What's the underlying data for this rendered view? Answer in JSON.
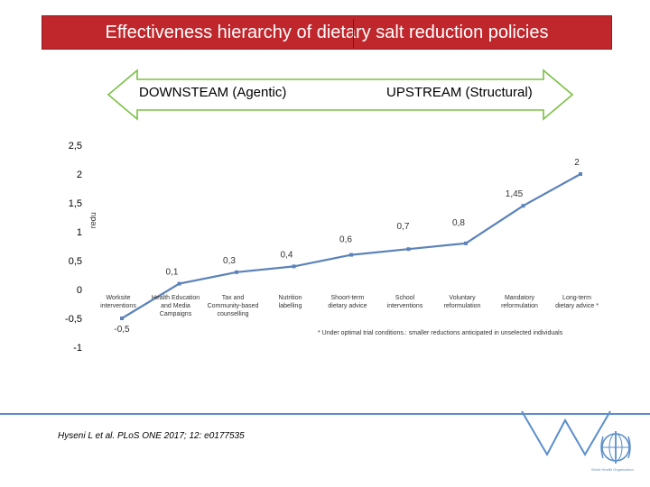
{
  "title": "Effectiveness hierarchy of dietary salt reduction policies",
  "arrow": {
    "left_label": "DOWNSTEAM (Agentic)",
    "right_label": "UPSTREAM (Structural)",
    "fill": "#ffffff",
    "stroke": "#7bc043"
  },
  "chart_data": {
    "type": "line",
    "ylabel": "redu",
    "ylim": [
      -1,
      2.5
    ],
    "yticks": [
      -1,
      -0.5,
      0,
      0.5,
      1,
      1.5,
      2,
      2.5
    ],
    "ytick_labels": [
      "-1",
      "-0,5",
      "0",
      "0,5",
      "1",
      "1,5",
      "2",
      "2,5"
    ],
    "categories": [
      "Worksite interventions",
      "Health Education and Media Campaigns",
      "Tax and Community-based counselling",
      "Nutrition labelling",
      "Shoort-term dietary advice",
      "School interventions",
      "Voluntary reformulation",
      "Mandatory reformulation",
      "Long-term dietary advice *"
    ],
    "values": [
      -0.5,
      0.1,
      0.3,
      0.4,
      0.6,
      0.7,
      0.8,
      1.45,
      2
    ],
    "value_labels": [
      "-0,5",
      "0,1",
      "0,3",
      "0,4",
      "0,6",
      "0,7",
      "0,8",
      "1,45",
      "2"
    ],
    "line_color": "#5b82b9",
    "grid": false,
    "legend": "none"
  },
  "footnote": "* Under optimal trial conditions.: smaller reductions anticipated in unselected individuals",
  "citation": "Hyseni L et al. PLoS ONE 2017; 12: e0177535",
  "logo": {
    "icon": "who-emblem-icon",
    "caption": "World Health Organization",
    "color": "#5b8ecb"
  }
}
